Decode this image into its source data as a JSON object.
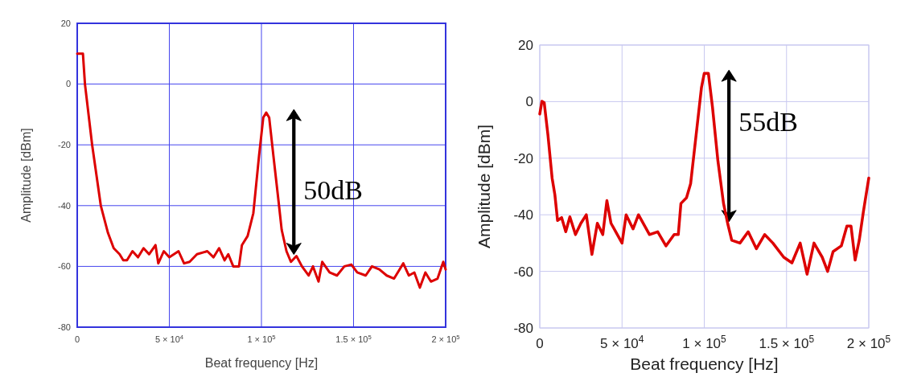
{
  "chart_data": [
    {
      "type": "line",
      "xlabel": "Beat frequency [Hz]",
      "ylabel": "Amplitude [dBm]",
      "xlim": [
        0,
        200000
      ],
      "ylim": [
        -80,
        20
      ],
      "xticks": [
        0,
        {
          "value": 50000,
          "label": "5 × 10$^{4}$"
        },
        {
          "value": 100000,
          "label": "1 × 10$^{5}$"
        },
        {
          "value": 150000,
          "label": "1.5 × 10$^{5}$"
        },
        {
          "value": 200000,
          "label": "2 × 10$^{5}$"
        }
      ],
      "yticks": [
        -80,
        -60,
        -40,
        -20,
        0,
        20
      ],
      "grid": true,
      "annotations": [
        "50dB"
      ],
      "series": [
        {
          "color": "#dd0000",
          "x": [
            0,
            3100,
            4200,
            8100,
            12800,
            16700,
            19800,
            23000,
            25000,
            27000,
            30000,
            33000,
            36000,
            39000,
            42500,
            44000,
            47000,
            50000,
            55000,
            58000,
            61000,
            65000,
            70600,
            74000,
            77000,
            80000,
            82000,
            84700,
            87800,
            89400,
            92500,
            95600,
            98700,
            101000,
            102600,
            104200,
            106500,
            109000,
            111000,
            113600,
            116000,
            119000,
            122000,
            125600,
            128000,
            131000,
            133000,
            137000,
            141000,
            145000,
            148800,
            152000,
            156600,
            160000,
            164000,
            168000,
            172000,
            175000,
            177000,
            180000,
            183000,
            186000,
            189000,
            192000,
            195600,
            198700,
            200000
          ],
          "values": [
            10,
            10,
            0,
            -20,
            -40,
            -49,
            -54,
            -56,
            -58,
            -58,
            -55,
            -57,
            -54,
            -56,
            -53,
            -59,
            -55,
            -57,
            -55,
            -59,
            -58.5,
            -56,
            -55,
            -57,
            -54,
            -58,
            -56,
            -60,
            -60,
            -53,
            -50,
            -42.5,
            -23.6,
            -11,
            -9.4,
            -11,
            -23.6,
            -37,
            -48,
            -55,
            -58.5,
            -56.6,
            -60,
            -63,
            -60,
            -65,
            -58.5,
            -62,
            -63,
            -60,
            -59.4,
            -62,
            -63,
            -60,
            -61,
            -63,
            -64,
            -61,
            -59,
            -63,
            -62,
            -67,
            -62,
            -65,
            -64,
            -58.5,
            -61
          ]
        }
      ]
    },
    {
      "type": "line",
      "xlabel": "Beat frequency [Hz]",
      "ylabel": "Amplitude [dBm]",
      "xlim": [
        0,
        200000
      ],
      "ylim": [
        -80,
        20
      ],
      "xticks": [
        0,
        {
          "value": 50000,
          "label": "5 × 10$^{4}$"
        },
        {
          "value": 100000,
          "label": "1 × 10$^{5}$"
        },
        {
          "value": 150000,
          "label": "1.5 × 10$^{5}$"
        },
        {
          "value": 200000,
          "label": "2 × 10$^{5}$"
        }
      ],
      "yticks": [
        -80,
        -60,
        -40,
        -20,
        0,
        20
      ],
      "grid": true,
      "annotations": [
        "55dB"
      ],
      "series": [
        {
          "color": "#dd0000",
          "x": [
            0,
            1300,
            2700,
            5000,
            7500,
            9200,
            10800,
            13300,
            15800,
            18300,
            21700,
            25000,
            28300,
            31700,
            35000,
            38300,
            40800,
            43300,
            50000,
            52500,
            56700,
            60000,
            66700,
            71700,
            76700,
            81700,
            84200,
            85800,
            89200,
            91700,
            95000,
            98300,
            100000,
            102500,
            105000,
            108300,
            111700,
            114200,
            116700,
            121700,
            126700,
            131700,
            136700,
            141700,
            148300,
            153300,
            158300,
            162500,
            166700,
            171700,
            175000,
            178300,
            183300,
            186700,
            189200,
            191700,
            194200,
            196700,
            200000
          ],
          "values": [
            -4.4,
            0.1,
            -0.4,
            -12,
            -27,
            -33,
            -42,
            -41,
            -46,
            -40.7,
            -47,
            -43,
            -40,
            -54,
            -43,
            -47,
            -35,
            -43,
            -50,
            -40,
            -45,
            -40,
            -47,
            -46,
            -51,
            -47,
            -47,
            -36,
            -34,
            -29,
            -12,
            5,
            10,
            10,
            -2,
            -21,
            -36,
            -43,
            -49,
            -50,
            -46,
            -52,
            -47,
            -50,
            -55,
            -57,
            -50,
            -61,
            -50,
            -55,
            -60,
            -53,
            -51,
            -44,
            -44,
            -56,
            -49,
            -39,
            -27
          ]
        }
      ]
    }
  ]
}
